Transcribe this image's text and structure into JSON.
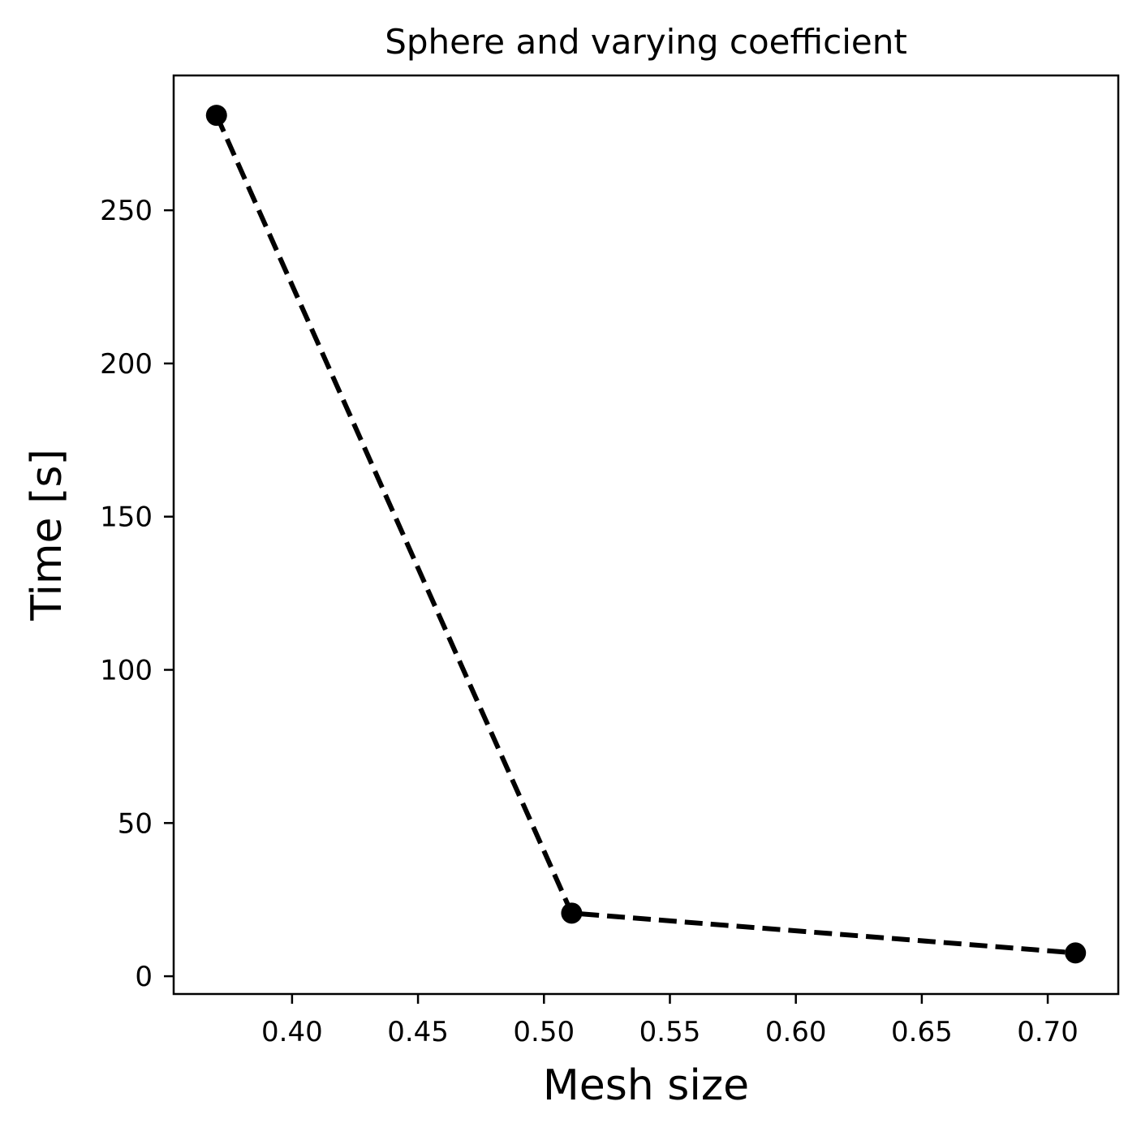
{
  "chart_data": {
    "type": "line",
    "title": "Sphere and varying coefficient",
    "xlabel": "Mesh size",
    "ylabel": "Time [s]",
    "xlim": [
      0.353,
      0.728
    ],
    "ylim": [
      -5.8,
      294
    ],
    "xticks": [
      0.4,
      0.45,
      0.5,
      0.55,
      0.6,
      0.65,
      0.7
    ],
    "xtick_labels": [
      "0.40",
      "0.45",
      "0.50",
      "0.55",
      "0.60",
      "0.65",
      "0.70"
    ],
    "yticks": [
      0,
      50,
      100,
      150,
      200,
      250
    ],
    "ytick_labels": [
      "0",
      "50",
      "100",
      "150",
      "200",
      "250"
    ],
    "grid": false,
    "series": [
      {
        "x": [
          0.37,
          0.511,
          0.711
        ],
        "y": [
          281,
          20.6,
          7.6
        ],
        "line_style": "dashed",
        "marker": "circle",
        "color": "#000000"
      }
    ]
  }
}
